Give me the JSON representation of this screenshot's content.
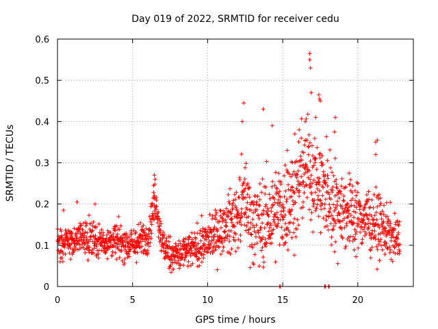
{
  "chart_data": {
    "type": "scatter",
    "title": "Day 019 of 2022, SRMTID for receiver cedu",
    "xlabel": "GPS time / hours",
    "ylabel": "SRMTID / TECUs",
    "xlim": [
      0,
      23.7
    ],
    "ylim": [
      0,
      0.6
    ],
    "xticks": [
      0,
      5,
      10,
      15,
      20
    ],
    "yticks": [
      0,
      0.1,
      0.2,
      0.3,
      0.4,
      0.5,
      0.6
    ],
    "xtick_labels": [
      "0",
      "5",
      "10",
      "15",
      "20"
    ],
    "ytick_labels": [
      "0",
      "0.1",
      "0.2",
      "0.3",
      "0.4",
      "0.5",
      "0.6"
    ],
    "grid": true,
    "marker": "plus",
    "color": "#ff0000",
    "trend": {
      "description": "approximate local mean of SRMTID versus GPS time",
      "x": [
        0,
        1,
        2,
        3,
        4,
        5,
        6,
        6.5,
        7,
        7.5,
        8,
        9,
        10,
        11,
        12,
        12.5,
        13,
        14,
        15,
        16,
        16.5,
        17,
        17.5,
        18,
        19,
        20,
        21,
        22,
        22.8
      ],
      "y": [
        0.105,
        0.11,
        0.12,
        0.11,
        0.11,
        0.1,
        0.12,
        0.21,
        0.1,
        0.08,
        0.075,
        0.09,
        0.11,
        0.14,
        0.17,
        0.22,
        0.15,
        0.16,
        0.19,
        0.23,
        0.3,
        0.27,
        0.24,
        0.22,
        0.19,
        0.17,
        0.16,
        0.13,
        0.11
      ]
    },
    "spread": {
      "x": [
        0,
        6,
        9,
        11,
        12.5,
        14,
        16,
        17,
        18.5,
        20,
        21.5,
        22.8
      ],
      "y": [
        0.035,
        0.035,
        0.035,
        0.05,
        0.08,
        0.09,
        0.1,
        0.1,
        0.09,
        0.07,
        0.06,
        0.04
      ]
    },
    "notable_points": [
      {
        "x": 16.8,
        "y": 0.565
      },
      {
        "x": 16.8,
        "y": 0.55
      },
      {
        "x": 16.85,
        "y": 0.53
      },
      {
        "x": 16.9,
        "y": 0.47
      },
      {
        "x": 17.4,
        "y": 0.465
      },
      {
        "x": 17.5,
        "y": 0.45
      },
      {
        "x": 17.45,
        "y": 0.455
      },
      {
        "x": 12.4,
        "y": 0.445
      },
      {
        "x": 13.7,
        "y": 0.43
      },
      {
        "x": 12.3,
        "y": 0.4
      },
      {
        "x": 14.3,
        "y": 0.39
      },
      {
        "x": 18.5,
        "y": 0.41
      },
      {
        "x": 18.45,
        "y": 0.375
      },
      {
        "x": 21.2,
        "y": 0.35
      },
      {
        "x": 21.3,
        "y": 0.355
      },
      {
        "x": 21.2,
        "y": 0.32
      },
      {
        "x": 6.45,
        "y": 0.27
      },
      {
        "x": 6.5,
        "y": 0.26
      },
      {
        "x": 6.4,
        "y": 0.245
      },
      {
        "x": 15.8,
        "y": 0.37
      },
      {
        "x": 16.1,
        "y": 0.38
      },
      {
        "x": 17.2,
        "y": 0.41
      },
      {
        "x": 16.5,
        "y": 0.4
      },
      {
        "x": 15.3,
        "y": 0.33
      },
      {
        "x": 2.5,
        "y": 0.2
      },
      {
        "x": 1.3,
        "y": 0.205
      },
      {
        "x": 0.4,
        "y": 0.185
      },
      {
        "x": 14.8,
        "y": 0.0
      },
      {
        "x": 14.85,
        "y": 0.0
      },
      {
        "x": 17.8,
        "y": 0.0
      },
      {
        "x": 17.85,
        "y": 0.0
      },
      {
        "x": 18.05,
        "y": 0.0
      },
      {
        "x": 18.1,
        "y": 0.0
      }
    ],
    "point_count": 1700,
    "x_range_of_data": [
      0,
      22.8
    ]
  }
}
